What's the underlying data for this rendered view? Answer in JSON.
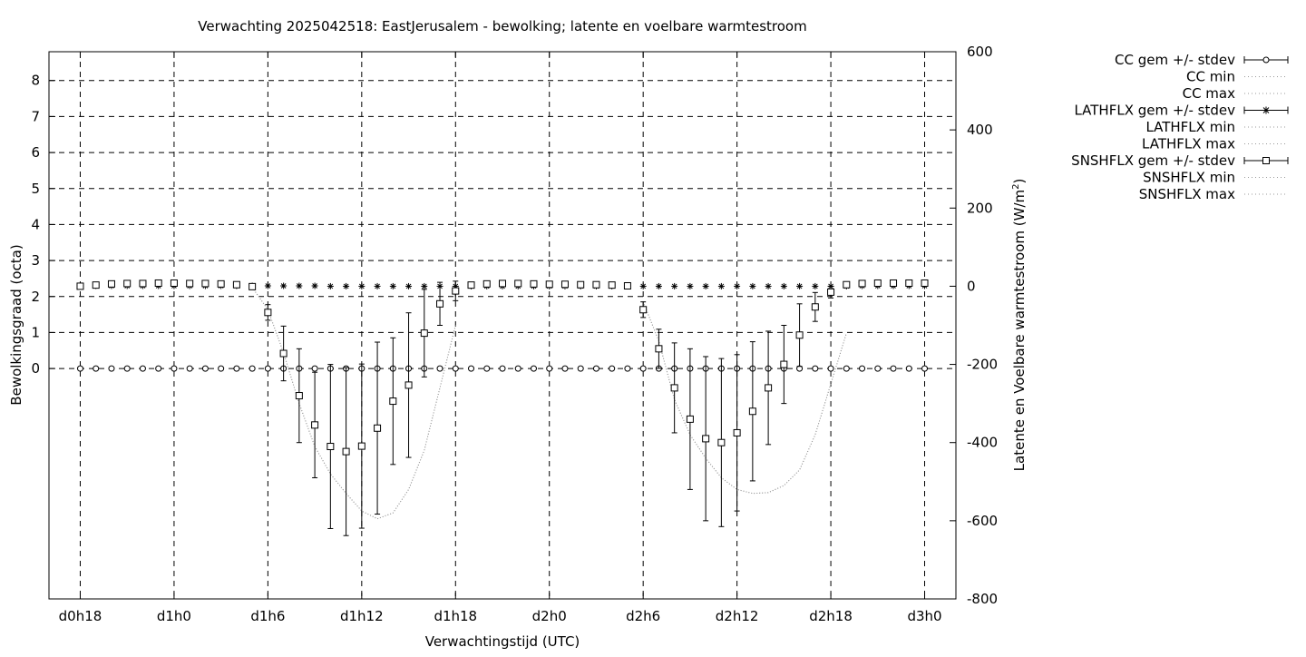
{
  "chart_data": {
    "type": "line",
    "title": "Verwachting 2025042518: EastJerusalem - bewolking; latente en voelbare warmtestroom",
    "xlabel": "Verwachtingstijd (UTC)",
    "ylabel": "Bewolkingsgraad (octa)",
    "y2label_main": "Latente en Voelbare warmtestroom (W/m",
    "y2label_sup": "2",
    "y2label_end": ")",
    "x_ticks": [
      "d0h18",
      "d1h0",
      "d1h6",
      "d1h12",
      "d1h18",
      "d2h0",
      "d2h6",
      "d2h12",
      "d2h18",
      "d3h0"
    ],
    "x_tick_hours": [
      0,
      6,
      12,
      18,
      24,
      30,
      36,
      42,
      48,
      54
    ],
    "xlim": [
      -2,
      56
    ],
    "ylim": [
      -6.4,
      8.8
    ],
    "y_ticks": [
      0,
      1,
      2,
      3,
      4,
      5,
      6,
      7,
      8
    ],
    "y2lim": [
      -800,
      600
    ],
    "y2_ticks": [
      -800,
      -600,
      -400,
      -200,
      0,
      200,
      400,
      600
    ],
    "grid": true,
    "legend_position": "top-right outside",
    "legend": [
      {
        "label": "CC gem +/- stdev",
        "marker": "circle",
        "line": "solid"
      },
      {
        "label": "CC min",
        "marker": "none",
        "line": "dotted"
      },
      {
        "label": "CC max",
        "marker": "none",
        "line": "dotted"
      },
      {
        "label": "LATHFLX gem +/- stdev",
        "marker": "star",
        "line": "solid"
      },
      {
        "label": "LATHFLX min",
        "marker": "none",
        "line": "dotted"
      },
      {
        "label": "LATHFLX max",
        "marker": "none",
        "line": "dotted"
      },
      {
        "label": "SNSHFLX gem +/- stdev",
        "marker": "square",
        "line": "solid"
      },
      {
        "label": "SNSHFLX min",
        "marker": "none",
        "line": "dotted"
      },
      {
        "label": "SNSHFLX max",
        "marker": "none",
        "line": "dotted"
      }
    ],
    "x_hours": [
      0,
      1,
      2,
      3,
      4,
      5,
      6,
      7,
      8,
      9,
      10,
      11,
      12,
      13,
      14,
      15,
      16,
      17,
      18,
      19,
      20,
      21,
      22,
      23,
      24,
      25,
      26,
      27,
      28,
      29,
      30,
      31,
      32,
      33,
      34,
      35,
      36,
      37,
      38,
      39,
      40,
      41,
      42,
      43,
      44,
      45,
      46,
      47,
      48,
      49,
      50,
      51,
      52,
      53,
      54
    ],
    "series": [
      {
        "name": "CC gem +/- stdev",
        "axis": "y1",
        "values": [
          0,
          0,
          0,
          0,
          0,
          0,
          0,
          0,
          0,
          0,
          0,
          0,
          0,
          0,
          0,
          0,
          0,
          0,
          0,
          0,
          0,
          0,
          0,
          0,
          0,
          0,
          0,
          0,
          0,
          0,
          0,
          0,
          0,
          0,
          0,
          0,
          0,
          0,
          0,
          0,
          0,
          0,
          0,
          0,
          0,
          0,
          0,
          0,
          0,
          0,
          0,
          0,
          0,
          0,
          0
        ],
        "stdev": [
          0,
          0,
          0,
          0,
          0,
          0,
          0,
          0,
          0,
          0,
          0,
          0,
          0,
          0,
          0,
          0,
          0,
          0,
          0,
          0,
          0,
          0,
          0,
          0,
          0,
          0,
          0,
          0,
          0,
          0,
          0,
          0,
          0,
          0,
          0,
          0,
          0,
          0,
          0,
          0,
          0,
          0,
          0,
          0,
          0,
          0,
          0,
          0,
          0,
          0,
          0,
          0,
          0,
          0,
          0
        ]
      },
      {
        "name": "LATHFLX gem +/- stdev",
        "axis": "y2",
        "values": [
          0,
          1,
          1,
          1,
          1,
          1,
          1,
          1,
          1,
          1,
          1,
          1,
          1,
          1,
          1,
          1,
          0,
          0,
          0,
          0,
          0,
          0,
          0,
          0,
          0,
          0,
          0,
          0,
          0,
          0,
          0,
          0,
          0,
          0,
          0,
          0,
          0,
          0,
          0,
          0,
          0,
          0,
          0,
          0,
          0,
          0,
          0,
          0,
          0,
          0,
          1,
          1,
          1,
          1,
          1
        ],
        "stdev": [
          1,
          1,
          1,
          1,
          1,
          1,
          1,
          1,
          1,
          1,
          1,
          1,
          1,
          1,
          1,
          1,
          1,
          1,
          1,
          1,
          1,
          1,
          1,
          1,
          1,
          1,
          1,
          1,
          1,
          1,
          1,
          1,
          1,
          1,
          1,
          1,
          1,
          1,
          1,
          1,
          1,
          1,
          1,
          1,
          1,
          1,
          1,
          1,
          1,
          1,
          1,
          1,
          1,
          1,
          1
        ]
      },
      {
        "name": "SNSHFLX gem +/- stdev",
        "axis": "y2",
        "values": [
          0,
          3,
          6,
          7,
          7,
          8,
          8,
          7,
          7,
          6,
          4,
          -1,
          -67,
          -172,
          -280,
          -355,
          -410,
          -423,
          -409,
          -363,
          -294,
          -253,
          -120,
          -45,
          -12,
          3,
          6,
          7,
          7,
          6,
          5,
          5,
          4,
          4,
          3,
          1,
          -60,
          -160,
          -260,
          -340,
          -390,
          -400,
          -375,
          -320,
          -260,
          -200,
          -125,
          -53,
          -15,
          4,
          7,
          8,
          8,
          8,
          8
        ],
        "stdev": [
          0,
          0,
          0,
          0,
          0,
          0,
          0,
          0,
          0,
          0,
          0,
          0,
          20,
          70,
          120,
          135,
          210,
          215,
          210,
          220,
          162,
          185,
          112,
          55,
          25,
          0,
          0,
          0,
          0,
          0,
          0,
          0,
          0,
          0,
          0,
          0,
          20,
          50,
          115,
          180,
          210,
          215,
          200,
          178,
          145,
          100,
          80,
          37,
          15,
          0,
          0,
          0,
          0,
          0,
          0
        ]
      }
    ],
    "minmax": [
      {
        "name": "SNSHFLX min",
        "axis": "y2",
        "x": [
          11,
          12,
          13,
          14,
          15,
          16,
          17,
          18,
          19,
          20,
          21,
          22,
          23,
          24
        ],
        "values": [
          -3,
          -60,
          -170,
          -300,
          -410,
          -480,
          -530,
          -575,
          -595,
          -580,
          -520,
          -420,
          -260,
          -100
        ]
      },
      {
        "name": "SNSHFLX max",
        "axis": "y2",
        "x": [
          11,
          12,
          13,
          14,
          15,
          16,
          17,
          18,
          19,
          20,
          21,
          22,
          23,
          24
        ],
        "values": [
          -3,
          -60,
          -170,
          -300,
          -410,
          -480,
          -530,
          -575,
          -595,
          -580,
          -520,
          -420,
          -260,
          -100
        ]
      },
      {
        "name": "SNSHFLX min",
        "axis": "y2",
        "x": [
          36,
          37,
          38,
          39,
          40,
          41,
          42,
          43,
          44,
          45,
          46,
          47,
          48,
          49
        ],
        "values": [
          -40,
          -140,
          -290,
          -380,
          -440,
          -490,
          -520,
          -530,
          -528,
          -510,
          -470,
          -380,
          -250,
          -120
        ]
      },
      {
        "name": "SNSHFLX max",
        "axis": "y2",
        "x": [
          36,
          37,
          38,
          39,
          40,
          41,
          42,
          43,
          44,
          45,
          46,
          47,
          48,
          49
        ],
        "values": [
          -40,
          -140,
          -290,
          -380,
          -440,
          -490,
          -520,
          -530,
          -528,
          -510,
          -470,
          -380,
          -250,
          -120
        ]
      }
    ]
  }
}
